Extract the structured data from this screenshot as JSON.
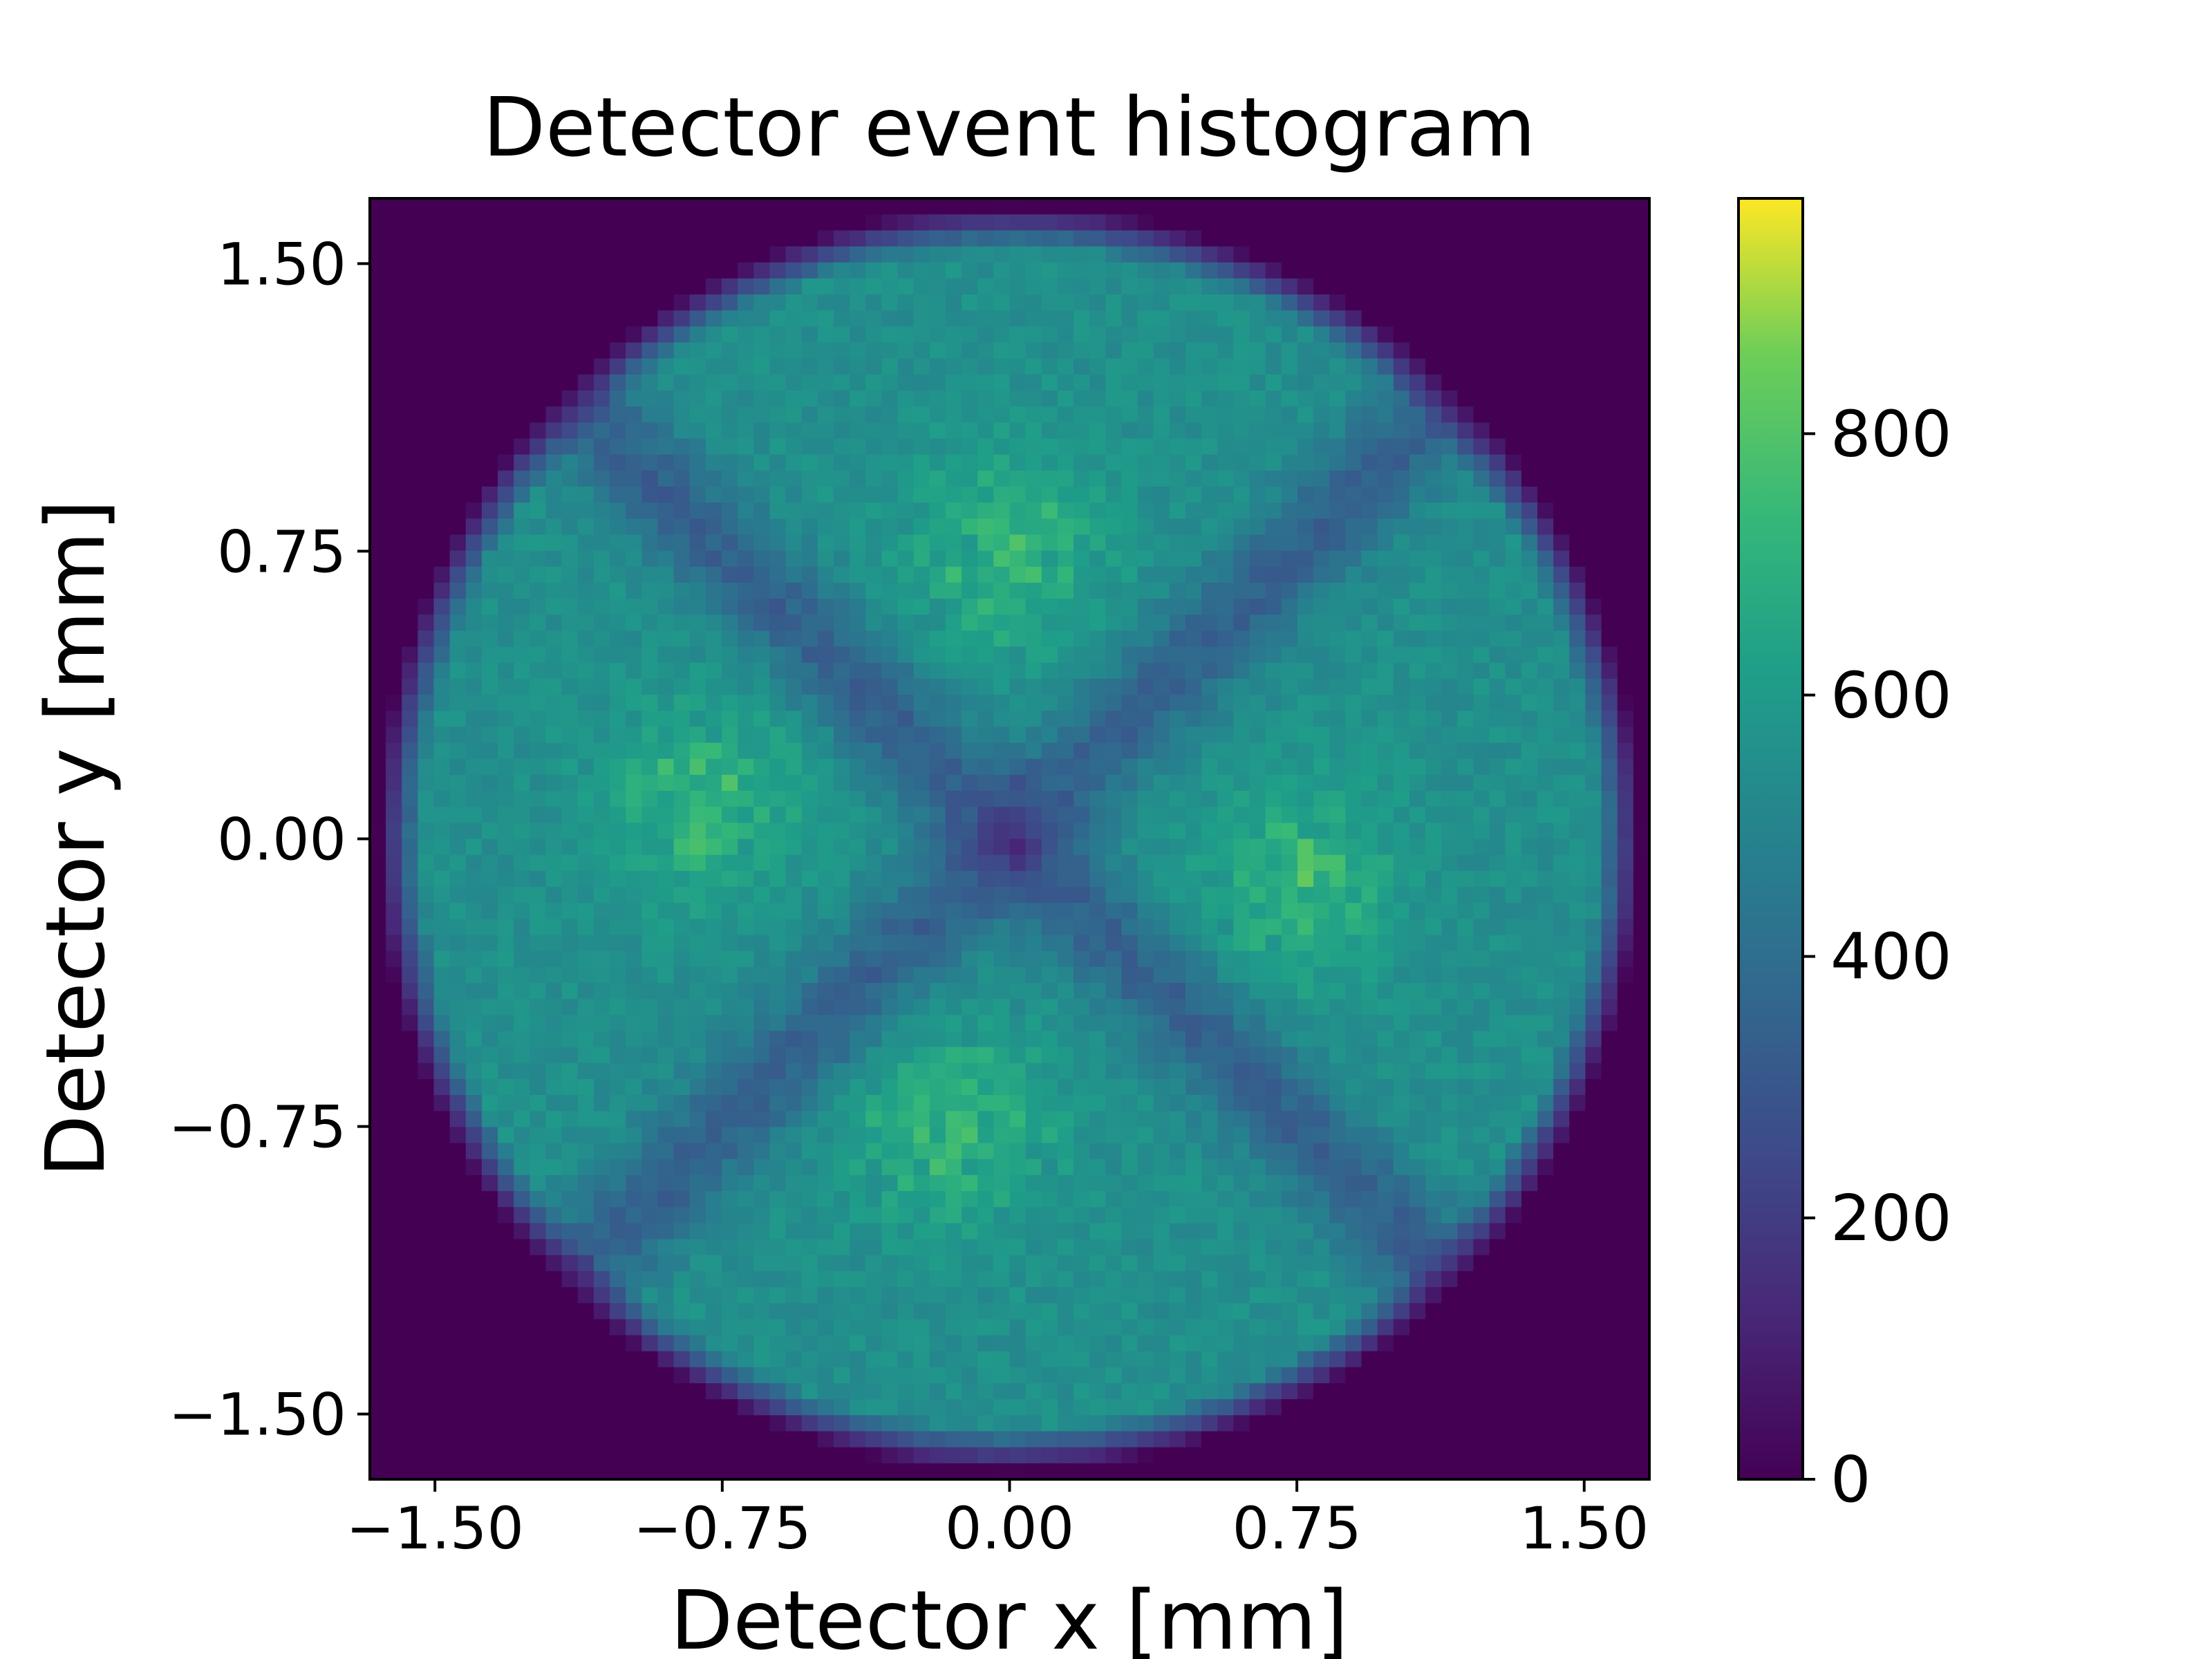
{
  "chart_data": {
    "type": "heatmap",
    "title": "Detector event histogram",
    "xlabel": "Detector x [mm]",
    "ylabel": "Detector y [mm]",
    "xlim": [
      -1.67,
      1.67
    ],
    "ylim": [
      -1.67,
      1.67
    ],
    "xticks": [
      -1.5,
      -0.75,
      0.0,
      0.75,
      1.5
    ],
    "xtick_labels": [
      "−1.50",
      "−0.75",
      "0.00",
      "0.75",
      "1.50"
    ],
    "yticks": [
      -1.5,
      -0.75,
      0.0,
      0.75,
      1.5
    ],
    "ytick_labels": [
      "−1.50",
      "−0.75",
      "0.00",
      "0.75",
      "1.50"
    ],
    "colormap": "viridis",
    "colorbar": {
      "range": [
        0,
        980
      ],
      "ticks": [
        0,
        200,
        400,
        600,
        800
      ],
      "tick_labels": [
        "0",
        "200",
        "400",
        "600",
        "800"
      ]
    },
    "grid": false,
    "features": {
      "disk_radius_mm": 1.6,
      "typical_counts_in_disk": 550,
      "background_counts": 0,
      "center_dip_counts": 260,
      "max_counts": 980,
      "bright_filaments_near": [
        [
          -0.8,
          0.1
        ],
        [
          0.0,
          0.75
        ],
        [
          0.75,
          -0.1
        ],
        [
          -0.15,
          -0.75
        ]
      ]
    }
  },
  "colors": {
    "background": "#ffffff",
    "axes_edge": "#000000",
    "colormap_stops": [
      "#440154",
      "#3b528b",
      "#21918c",
      "#5ec962",
      "#fde725"
    ]
  }
}
